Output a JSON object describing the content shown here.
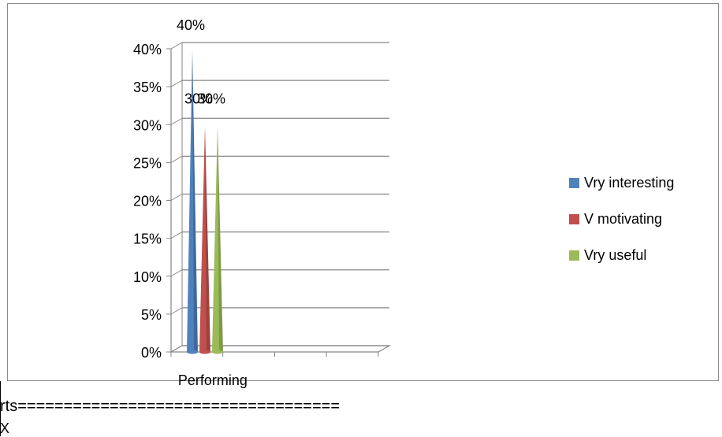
{
  "chart_data": {
    "type": "bar",
    "style": "3d-cone",
    "categories": [
      "Performing"
    ],
    "series": [
      {
        "name": "Vry interesting",
        "values": [
          0.4
        ],
        "color": "#4F81BD"
      },
      {
        "name": "V motivating",
        "values": [
          0.3
        ],
        "color": "#C0504D"
      },
      {
        "name": "Vry useful",
        "values": [
          0.3
        ],
        "color": "#9BBB59"
      }
    ],
    "data_labels": [
      "40%",
      "30%",
      "30%"
    ],
    "y_ticks": [
      "0%",
      "5%",
      "10%",
      "15%",
      "20%",
      "25%",
      "30%",
      "35%",
      "40%"
    ],
    "ylim": [
      0,
      0.4
    ],
    "grid": true,
    "legend_position": "right"
  },
  "footer": {
    "line1": "rts===================================",
    "line2": "X"
  }
}
